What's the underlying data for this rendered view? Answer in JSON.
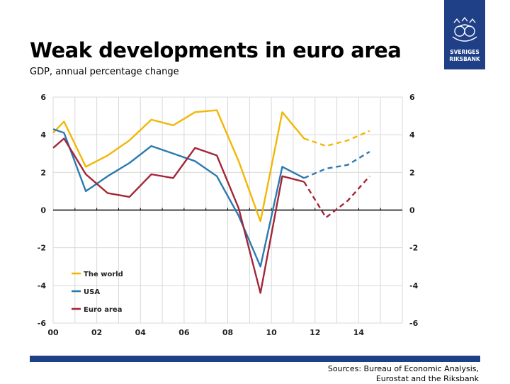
{
  "page": {
    "title": "Weak developments in euro area",
    "subtitle": "GDP, annual percentage change",
    "source_line1": "Sources: Bureau of Economic Analysis,",
    "source_line2": "Eurostat and the Riksbank",
    "logo_text_line1": "SVERIGES",
    "logo_text_line2": "RIKSBANK"
  },
  "colors": {
    "brand_blue": "#1f3f87",
    "world": "#f2b705",
    "usa": "#2a7ab0",
    "euro": "#a32638",
    "grid": "#d9d9d9",
    "zero_line": "#000000"
  },
  "chart_data": {
    "type": "line",
    "title": "Weak developments in euro area",
    "subtitle": "GDP, annual percentage change",
    "xlabel": "",
    "ylabel": "",
    "x": [
      2000,
      2001,
      2002,
      2003,
      2004,
      2005,
      2006,
      2007,
      2008,
      2009,
      2010,
      2011,
      2012,
      2013,
      2014,
      2015
    ],
    "xlim": [
      2000,
      2016
    ],
    "ylim": [
      -6,
      6
    ],
    "x_ticks": [
      "00",
      "02",
      "04",
      "06",
      "08",
      "10",
      "12",
      "14"
    ],
    "y_ticks": [
      "6",
      "4",
      "2",
      "0",
      "-2",
      "-4",
      "-6"
    ],
    "y_tick_values": [
      6,
      4,
      2,
      0,
      -2,
      -4,
      -6
    ],
    "forecast_start": 2011.5,
    "grid": true,
    "legend_position": "bottom-left",
    "series": [
      {
        "name": "The world",
        "color_key": "world",
        "points": [
          [
            2000,
            4.1
          ],
          [
            2000.5,
            4.7
          ],
          [
            2001.5,
            2.3
          ],
          [
            2002.5,
            2.9
          ],
          [
            2003.5,
            3.7
          ],
          [
            2004.5,
            4.8
          ],
          [
            2005.5,
            4.5
          ],
          [
            2006.5,
            5.2
          ],
          [
            2007.5,
            5.3
          ],
          [
            2008.5,
            2.6
          ],
          [
            2009.5,
            -0.6
          ],
          [
            2010.5,
            5.2
          ],
          [
            2011.5,
            3.8
          ],
          [
            2012.5,
            3.4
          ],
          [
            2013.5,
            3.7
          ],
          [
            2014.5,
            4.2
          ]
        ]
      },
      {
        "name": "USA",
        "color_key": "usa",
        "points": [
          [
            2000,
            4.3
          ],
          [
            2000.5,
            4.1
          ],
          [
            2001.5,
            1.0
          ],
          [
            2002.5,
            1.8
          ],
          [
            2003.5,
            2.5
          ],
          [
            2004.5,
            3.4
          ],
          [
            2005.5,
            3.0
          ],
          [
            2006.5,
            2.6
          ],
          [
            2007.5,
            1.8
          ],
          [
            2008.5,
            -0.3
          ],
          [
            2009.5,
            -3.0
          ],
          [
            2010.5,
            2.3
          ],
          [
            2011.5,
            1.7
          ],
          [
            2012.5,
            2.2
          ],
          [
            2013.5,
            2.4
          ],
          [
            2014.5,
            3.1
          ]
        ]
      },
      {
        "name": "Euro area",
        "color_key": "euro",
        "points": [
          [
            2000,
            3.3
          ],
          [
            2000.5,
            3.8
          ],
          [
            2001.5,
            1.9
          ],
          [
            2002.5,
            0.9
          ],
          [
            2003.5,
            0.7
          ],
          [
            2004.5,
            1.9
          ],
          [
            2005.5,
            1.7
          ],
          [
            2006.5,
            3.3
          ],
          [
            2007.5,
            2.9
          ],
          [
            2008.5,
            0.1
          ],
          [
            2009.5,
            -4.4
          ],
          [
            2010.5,
            1.8
          ],
          [
            2011.5,
            1.5
          ],
          [
            2012.5,
            -0.4
          ],
          [
            2013.5,
            0.5
          ],
          [
            2014.5,
            1.8
          ]
        ]
      }
    ]
  }
}
